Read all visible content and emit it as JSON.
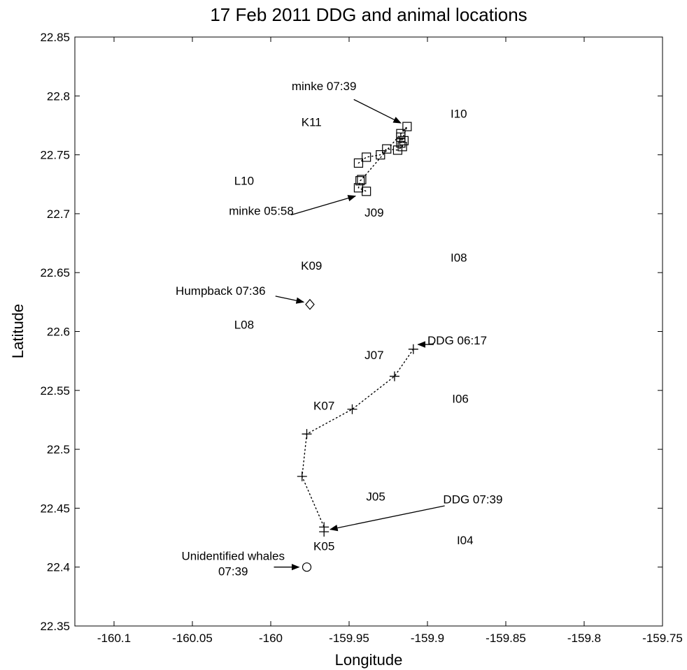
{
  "chart_data": {
    "type": "scatter",
    "title": "17 Feb 2011 DDG and animal locations",
    "xlabel": "Longitude",
    "ylabel": "Latitude",
    "xlim": [
      -160.125,
      -159.75
    ],
    "ylim": [
      22.35,
      22.85
    ],
    "xticks": [
      -160.1,
      -160.05,
      -160,
      -159.95,
      -159.9,
      -159.85,
      -159.8,
      -159.75
    ],
    "yticks": [
      22.35,
      22.4,
      22.45,
      22.5,
      22.55,
      22.6,
      22.65,
      22.7,
      22.75,
      22.8,
      22.85
    ],
    "xtick_labels": [
      "-160.1",
      "-160.05",
      "-160",
      "-159.95",
      "-159.9",
      "-159.85",
      "-159.8",
      "-159.75"
    ],
    "ytick_labels": [
      "22.35",
      "22.4",
      "22.45",
      "22.5",
      "22.55",
      "22.6",
      "22.65",
      "22.7",
      "22.75",
      "22.8",
      "22.85"
    ],
    "grid": false,
    "sites": [
      {
        "label": "I10",
        "x": -159.88,
        "y": 22.785
      },
      {
        "label": "K11",
        "x": -159.974,
        "y": 22.778
      },
      {
        "label": "L10",
        "x": -160.017,
        "y": 22.728
      },
      {
        "label": "J09",
        "x": -159.934,
        "y": 22.701
      },
      {
        "label": "I08",
        "x": -159.88,
        "y": 22.663
      },
      {
        "label": "K09",
        "x": -159.974,
        "y": 22.656
      },
      {
        "label": "L08",
        "x": -160.017,
        "y": 22.606
      },
      {
        "label": "J07",
        "x": -159.934,
        "y": 22.58
      },
      {
        "label": "I06",
        "x": -159.879,
        "y": 22.543
      },
      {
        "label": "K07",
        "x": -159.966,
        "y": 22.537
      },
      {
        "label": "J05",
        "x": -159.933,
        "y": 22.46
      },
      {
        "label": "I04",
        "x": -159.876,
        "y": 22.423
      },
      {
        "label": "K05",
        "x": -159.966,
        "y": 22.418
      }
    ],
    "series": [
      {
        "marker": "square",
        "connected": true,
        "points": [
          {
            "x": -159.944,
            "y": 22.743
          },
          {
            "x": -159.939,
            "y": 22.748
          },
          {
            "x": -159.93,
            "y": 22.75
          },
          {
            "x": -159.926,
            "y": 22.755
          },
          {
            "x": -159.919,
            "y": 22.754
          },
          {
            "x": -159.916,
            "y": 22.757
          },
          {
            "x": -159.915,
            "y": 22.762
          },
          {
            "x": -159.917,
            "y": 22.765
          },
          {
            "x": -159.917,
            "y": 22.768
          },
          {
            "x": -159.917,
            "y": 22.76
          },
          {
            "x": -159.913,
            "y": 22.774
          },
          {
            "x": -159.942,
            "y": 22.729
          },
          {
            "x": -159.943,
            "y": 22.728
          },
          {
            "x": -159.944,
            "y": 22.722
          },
          {
            "x": -159.939,
            "y": 22.719
          }
        ]
      },
      {
        "marker": "plus",
        "connected": true,
        "points": [
          {
            "x": -159.909,
            "y": 22.585
          },
          {
            "x": -159.921,
            "y": 22.562
          },
          {
            "x": -159.948,
            "y": 22.534
          },
          {
            "x": -159.977,
            "y": 22.513
          },
          {
            "x": -159.98,
            "y": 22.477
          },
          {
            "x": -159.966,
            "y": 22.434
          },
          {
            "x": -159.966,
            "y": 22.43
          }
        ]
      },
      {
        "marker": "diamond",
        "connected": false,
        "points": [
          {
            "x": -159.975,
            "y": 22.623
          }
        ]
      },
      {
        "marker": "circle",
        "connected": false,
        "points": [
          {
            "x": -159.977,
            "y": 22.4
          }
        ]
      }
    ],
    "annotations": [
      {
        "lines": [
          "minke 07:39"
        ],
        "text_x": -159.966,
        "text_y": 22.805,
        "anchor": "middle",
        "arrow_from": {
          "x": -159.947,
          "y": 22.797
        },
        "arrow_to": {
          "x": -159.917,
          "y": 22.777
        }
      },
      {
        "lines": [
          "minke 05:58"
        ],
        "text_x": -160.006,
        "text_y": 22.699,
        "anchor": "middle",
        "arrow_from": {
          "x": -159.987,
          "y": 22.699
        },
        "arrow_to": {
          "x": -159.946,
          "y": 22.715
        }
      },
      {
        "lines": [
          "Humpback 07:36"
        ],
        "text_x": -160.032,
        "text_y": 22.631,
        "anchor": "middle",
        "arrow_from": {
          "x": -159.997,
          "y": 22.63
        },
        "arrow_to": {
          "x": -159.979,
          "y": 22.625
        }
      },
      {
        "lines": [
          "DDG 06:17"
        ],
        "text_x": -159.881,
        "text_y": 22.589,
        "anchor": "middle",
        "arrow_from": {
          "x": -159.896,
          "y": 22.589
        },
        "arrow_to": {
          "x": -159.906,
          "y": 22.589
        }
      },
      {
        "lines": [
          "DDG 07:39"
        ],
        "text_x": -159.871,
        "text_y": 22.454,
        "anchor": "middle",
        "arrow_from": {
          "x": -159.889,
          "y": 22.452
        },
        "arrow_to": {
          "x": -159.962,
          "y": 22.432
        }
      },
      {
        "lines": [
          "Unidentified whales",
          "07:39"
        ],
        "text_x": -160.024,
        "text_y": 22.406,
        "anchor": "middle",
        "arrow_from": {
          "x": -159.998,
          "y": 22.4
        },
        "arrow_to": {
          "x": -159.982,
          "y": 22.4
        }
      }
    ]
  }
}
